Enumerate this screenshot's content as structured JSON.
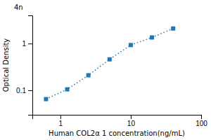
{
  "chart_data": {
    "type": "line",
    "x": [
      0.625,
      1.25,
      2.5,
      5,
      10,
      20,
      40
    ],
    "series": [
      {
        "values": [
          0.065,
          0.105,
          0.21,
          0.46,
          0.93,
          1.35,
          2.1
        ],
        "marker": "square",
        "line_style": "dotted"
      }
    ],
    "xlabel": "Human COL2α 1 concentration(ng/mL)",
    "ylabel": "Optical Density",
    "annotations": [
      "4n"
    ],
    "log": true,
    "xlim": [
      0.4,
      100
    ],
    "ylim": [
      0.03,
      4
    ],
    "xticks": [
      1,
      10,
      100
    ],
    "yticks": [
      0.1,
      1
    ],
    "grid": false
  }
}
